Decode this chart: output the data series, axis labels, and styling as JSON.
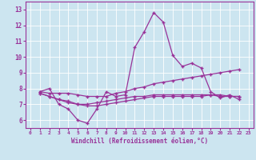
{
  "xlabel": "Windchill (Refroidissement éolien,°C)",
  "bg_color": "#cce5f0",
  "line_color": "#993399",
  "ylim": [
    5.5,
    13.5
  ],
  "xlim": [
    -0.5,
    23.5
  ],
  "yticks": [
    6,
    7,
    8,
    9,
    10,
    11,
    12,
    13
  ],
  "xticks": [
    0,
    1,
    2,
    3,
    4,
    5,
    6,
    7,
    8,
    9,
    10,
    11,
    12,
    13,
    14,
    15,
    16,
    17,
    18,
    19,
    20,
    21,
    22,
    23
  ],
  "series": [
    {
      "x": [
        1,
        2,
        3,
        4,
        5,
        6,
        7,
        8,
        9,
        10,
        11,
        12,
        13,
        14,
        15,
        16,
        17,
        18,
        19,
        20,
        21,
        22
      ],
      "y": [
        7.8,
        8.0,
        7.0,
        6.7,
        6.0,
        5.8,
        6.7,
        7.8,
        7.5,
        7.6,
        10.6,
        11.6,
        12.8,
        12.2,
        10.1,
        9.4,
        9.6,
        9.3,
        7.8,
        7.4,
        7.6,
        7.3
      ]
    },
    {
      "x": [
        1,
        2,
        3,
        4,
        5,
        6,
        7,
        8,
        9,
        10,
        11,
        12,
        13,
        14,
        15,
        16,
        17,
        18,
        19,
        20,
        21,
        22
      ],
      "y": [
        7.8,
        7.7,
        7.7,
        7.7,
        7.6,
        7.5,
        7.5,
        7.5,
        7.7,
        7.8,
        8.0,
        8.1,
        8.3,
        8.4,
        8.5,
        8.6,
        8.7,
        8.8,
        8.9,
        9.0,
        9.1,
        9.2
      ]
    },
    {
      "x": [
        1,
        2,
        3,
        4,
        5,
        6,
        7,
        8,
        9,
        10,
        11,
        12,
        13,
        14,
        15,
        16,
        17,
        18,
        19,
        20,
        21,
        22
      ],
      "y": [
        7.7,
        7.5,
        7.3,
        7.2,
        7.0,
        6.9,
        6.9,
        7.0,
        7.1,
        7.2,
        7.3,
        7.4,
        7.5,
        7.5,
        7.5,
        7.5,
        7.5,
        7.5,
        7.6,
        7.6,
        7.5,
        7.5
      ]
    },
    {
      "x": [
        1,
        2,
        3,
        4,
        5,
        6,
        7,
        8,
        9,
        10,
        11,
        12,
        13,
        14,
        15,
        16,
        17,
        18,
        19,
        20,
        21,
        22
      ],
      "y": [
        7.7,
        7.5,
        7.3,
        7.1,
        7.0,
        7.0,
        7.1,
        7.2,
        7.3,
        7.4,
        7.5,
        7.5,
        7.6,
        7.6,
        7.6,
        7.6,
        7.6,
        7.6,
        7.6,
        7.5,
        7.5,
        7.5
      ]
    }
  ]
}
